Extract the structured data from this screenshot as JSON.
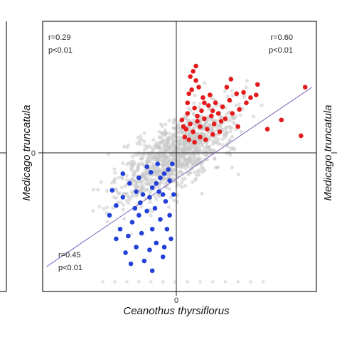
{
  "chart_data": {
    "type": "scatter",
    "xlabel": "Ceanothus thyrsiflorus",
    "ylabel": "Medicago truncatula",
    "xlim": [
      -1,
      1
    ],
    "ylim": [
      -1,
      1
    ],
    "x_ticks": [
      "0"
    ],
    "y_ticks": [
      "0"
    ],
    "grid": false,
    "quadrant_lines": true,
    "annotations": {
      "top_left": [
        "r=0.29",
        "p<0.01"
      ],
      "top_right": [
        "r=0.60",
        "p<0.01"
      ],
      "bottom_left": [
        "r=0.45",
        "p<0.01"
      ]
    },
    "right_neighbor_ylabel": "Medicago truncatula",
    "colors": {
      "background_points": "#c8c8c8",
      "up_points": "#e41a1c",
      "down_points": "#2340d8",
      "fit_line": "#8060c0",
      "axes": "#222222"
    },
    "fit_line": {
      "x": [
        -0.97,
        0.97
      ],
      "y": [
        -0.82,
        0.5
      ]
    },
    "series": [
      {
        "points": [
          [
            0.05,
            0.2
          ],
          [
            0.07,
            0.18
          ],
          [
            0.1,
            0.22
          ],
          [
            0.12,
            0.16
          ],
          [
            0.15,
            0.24
          ],
          [
            0.17,
            0.2
          ],
          [
            0.2,
            0.26
          ],
          [
            0.22,
            0.18
          ],
          [
            0.25,
            0.28
          ],
          [
            0.27,
            0.22
          ],
          [
            0.3,
            0.3
          ],
          [
            0.32,
            0.24
          ],
          [
            0.35,
            0.26
          ],
          [
            0.08,
            0.3
          ],
          [
            0.13,
            0.34
          ],
          [
            0.18,
            0.32
          ],
          [
            0.23,
            0.36
          ],
          [
            0.28,
            0.38
          ],
          [
            0.33,
            0.35
          ],
          [
            0.38,
            0.4
          ],
          [
            0.43,
            0.45
          ],
          [
            0.48,
            0.46
          ],
          [
            0.53,
            0.42
          ],
          [
            0.58,
            0.52
          ],
          [
            0.09,
            0.45
          ],
          [
            0.11,
            0.48
          ],
          [
            0.14,
            0.55
          ],
          [
            0.16,
            0.5
          ],
          [
            0.19,
            0.42
          ],
          [
            0.12,
            0.62
          ],
          [
            0.14,
            0.66
          ],
          [
            0.1,
            0.58
          ],
          [
            0.24,
            0.44
          ],
          [
            0.36,
            0.5
          ],
          [
            0.4,
            0.3
          ],
          [
            0.45,
            0.33
          ],
          [
            0.06,
            0.12
          ],
          [
            0.09,
            0.1
          ],
          [
            0.13,
            0.08
          ],
          [
            0.17,
            0.12
          ],
          [
            0.21,
            0.1
          ],
          [
            0.26,
            0.14
          ],
          [
            0.31,
            0.16
          ],
          [
            0.2,
            0.38
          ],
          [
            0.15,
            0.28
          ],
          [
            0.26,
            0.32
          ],
          [
            0.04,
            0.25
          ],
          [
            0.08,
            0.38
          ],
          [
            0.92,
            0.5
          ],
          [
            0.75,
            0.25
          ],
          [
            0.89,
            0.13
          ],
          [
            0.65,
            0.18
          ],
          [
            0.57,
            0.44
          ],
          [
            0.39,
            0.56
          ],
          [
            0.5,
            0.38
          ],
          [
            0.44,
            0.2
          ]
        ]
      },
      {
        "points": [
          [
            -0.03,
            -0.08
          ],
          [
            -0.06,
            -0.12
          ],
          [
            -0.09,
            -0.15
          ],
          [
            -0.12,
            -0.18
          ],
          [
            -0.15,
            -0.22
          ],
          [
            -0.18,
            -0.25
          ],
          [
            -0.1,
            -0.3
          ],
          [
            -0.2,
            -0.32
          ],
          [
            -0.05,
            -0.2
          ],
          [
            -0.13,
            -0.28
          ],
          [
            -0.25,
            -0.3
          ],
          [
            -0.3,
            -0.28
          ],
          [
            -0.08,
            -0.35
          ],
          [
            -0.16,
            -0.4
          ],
          [
            -0.22,
            -0.42
          ],
          [
            -0.28,
            -0.45
          ],
          [
            -0.33,
            -0.5
          ],
          [
            -0.12,
            -0.48
          ],
          [
            -0.18,
            -0.55
          ],
          [
            -0.26,
            -0.58
          ],
          [
            -0.36,
            -0.6
          ],
          [
            -0.42,
            -0.55
          ],
          [
            -0.45,
            -0.62
          ],
          [
            -0.15,
            -0.65
          ],
          [
            -0.2,
            -0.7
          ],
          [
            -0.3,
            -0.68
          ],
          [
            -0.38,
            -0.72
          ],
          [
            -0.1,
            -0.75
          ],
          [
            -0.24,
            -0.78
          ],
          [
            -0.34,
            -0.8
          ],
          [
            -0.18,
            -0.85
          ],
          [
            -0.4,
            -0.32
          ],
          [
            -0.45,
            -0.38
          ],
          [
            -0.5,
            -0.45
          ],
          [
            -0.48,
            -0.27
          ],
          [
            -0.07,
            -0.55
          ],
          [
            -0.05,
            -0.45
          ],
          [
            -0.28,
            -0.18
          ],
          [
            -0.22,
            -0.1
          ],
          [
            -0.35,
            -0.22
          ],
          [
            -0.4,
            -0.15
          ],
          [
            -0.02,
            -0.3
          ],
          [
            -0.14,
            -0.08
          ],
          [
            -0.19,
            -0.14
          ],
          [
            -0.27,
            -0.36
          ],
          [
            -0.31,
            -0.4
          ],
          [
            -0.04,
            -0.62
          ],
          [
            -0.09,
            -0.68
          ]
        ]
      }
    ]
  }
}
